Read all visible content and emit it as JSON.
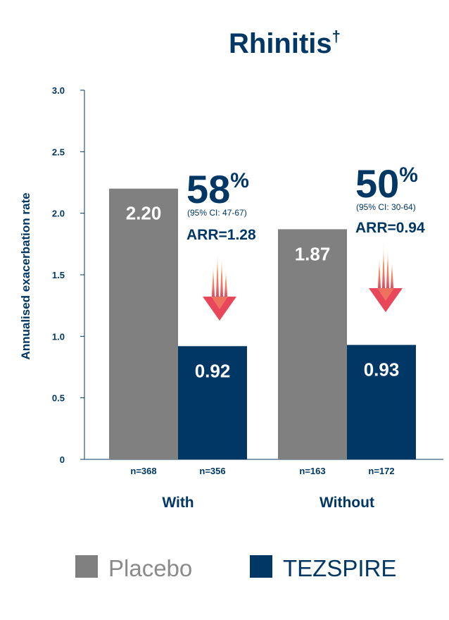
{
  "chart_data": {
    "type": "bar",
    "title": "Rhinitis",
    "title_mark": "†",
    "ylabel": "Annualised exacerbation rate",
    "ylim": [
      0,
      3.0
    ],
    "yticks": [
      "0",
      "0.5",
      "1.0",
      "1.5",
      "2.0",
      "2.5",
      "3.0"
    ],
    "categories": [
      "With",
      "Without"
    ],
    "series": [
      {
        "name": "Placebo",
        "color": "#808080",
        "values": [
          2.2,
          1.87
        ],
        "labels": [
          "2.20",
          "1.87"
        ],
        "n": [
          "n=368",
          "n=163"
        ]
      },
      {
        "name": "TEZSPIRE",
        "color": "#003764",
        "values": [
          0.92,
          0.93
        ],
        "labels": [
          "0.92",
          "0.93"
        ],
        "n": [
          "n=356",
          "n=172"
        ]
      }
    ],
    "annotations": [
      {
        "group": "With",
        "reduction": "58",
        "percent_sign": "%",
        "ci": "(95% CI: 47-67)",
        "arr": "ARR=1.28"
      },
      {
        "group": "Without",
        "reduction": "50",
        "percent_sign": "%",
        "ci": "(95% CI: 30-64)",
        "arr": "ARR=0.94"
      }
    ],
    "legend_position": "bottom",
    "grid": false
  },
  "colors": {
    "navy": "#003764",
    "gray": "#808080",
    "arrow_top": "#f7c59f",
    "arrow_bottom": "#e8465a"
  }
}
